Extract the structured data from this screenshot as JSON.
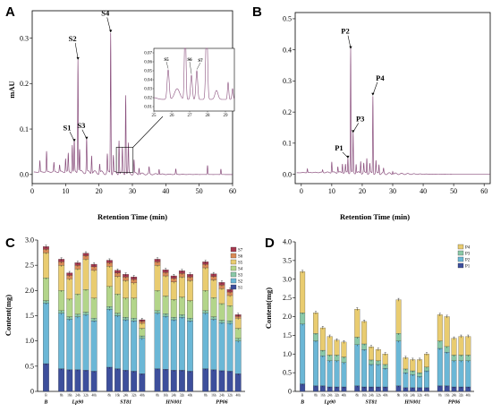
{
  "chart_data": [
    {
      "panel": "A",
      "type": "line",
      "xlabel": "Retention Time (min)",
      "ylabel": "mAU",
      "xlim": [
        0,
        60
      ],
      "ylim": [
        -0.02,
        0.36
      ],
      "xticks": [
        "0",
        "10",
        "20",
        "30",
        "40",
        "50",
        "60"
      ],
      "yticks": [
        "0.0",
        "0.1",
        "0.2",
        "0.3"
      ],
      "baseline_peaks": [
        [
          2.3,
          0.025
        ],
        [
          4.3,
          0.045
        ],
        [
          6.5,
          0.02
        ],
        [
          8.2,
          0.015
        ],
        [
          10.0,
          0.03
        ],
        [
          10.8,
          0.04
        ],
        [
          12.0,
          0.06
        ],
        [
          12.6,
          0.07
        ],
        [
          13.7,
          0.25
        ],
        [
          14.2,
          0.05
        ],
        [
          16.3,
          0.075
        ],
        [
          17.8,
          0.04
        ],
        [
          20.2,
          0.02
        ],
        [
          22.5,
          0.04
        ],
        [
          23.5,
          0.31
        ],
        [
          24.3,
          0.04
        ],
        [
          26.0,
          0.075
        ],
        [
          27.0,
          0.055
        ],
        [
          28.0,
          0.175
        ],
        [
          28.8,
          0.065
        ],
        [
          30.5,
          0.03
        ],
        [
          32.0,
          0.015
        ],
        [
          35.0,
          0.015
        ],
        [
          38.0,
          0.012
        ],
        [
          43.0,
          0.012
        ],
        [
          52.5,
          0.02
        ],
        [
          56.5,
          0.012
        ]
      ],
      "peaks": [
        {
          "label": "S1",
          "x": 12.6,
          "y": 0.07
        },
        {
          "label": "S2",
          "x": 13.7,
          "y": 0.25
        },
        {
          "label": "S3",
          "x": 16.3,
          "y": 0.075
        },
        {
          "label": "S4",
          "x": 23.5,
          "y": 0.31
        }
      ],
      "inset": {
        "xticks": [
          "25",
          "26",
          "27",
          "28",
          "29"
        ],
        "yticks": [
          "0.01",
          "0.02",
          "0.03",
          "0.04",
          "0.05",
          "0.06",
          "0.07"
        ],
        "xlim": [
          25,
          29.5
        ],
        "ylim": [
          0.005,
          0.075
        ],
        "peaks": [
          {
            "label": "S5",
            "x": 25.8,
            "y": 0.051
          },
          {
            "label": "S6",
            "x": 27.1,
            "y": 0.045
          },
          {
            "label": "S7",
            "x": 27.4,
            "y": 0.05
          }
        ]
      }
    },
    {
      "panel": "B",
      "type": "line",
      "xlabel": "Retention Time (min)",
      "ylabel": "",
      "xlim": [
        -2,
        62
      ],
      "ylim": [
        -0.03,
        0.52
      ],
      "xticks": [
        "0",
        "10",
        "20",
        "30",
        "40",
        "50",
        "60"
      ],
      "yticks": [
        "0.0",
        "0.1",
        "0.2",
        "0.3",
        "0.4",
        "0.5"
      ],
      "baseline_peaks": [
        [
          2.0,
          0.012
        ],
        [
          7.0,
          0.008
        ],
        [
          10.0,
          0.035
        ],
        [
          12.0,
          0.02
        ],
        [
          13.5,
          0.03
        ],
        [
          14.5,
          0.025
        ],
        [
          15.3,
          0.048
        ],
        [
          16.2,
          0.4
        ],
        [
          17.0,
          0.13
        ],
        [
          18.0,
          0.03
        ],
        [
          19.5,
          0.04
        ],
        [
          20.5,
          0.03
        ],
        [
          21.5,
          0.05
        ],
        [
          22.5,
          0.03
        ],
        [
          23.5,
          0.25
        ],
        [
          24.5,
          0.04
        ],
        [
          25.5,
          0.03
        ],
        [
          27.0,
          0.015
        ],
        [
          30.0,
          0.01
        ]
      ],
      "peaks": [
        {
          "label": "P1",
          "x": 15.3,
          "y": 0.048
        },
        {
          "label": "P2",
          "x": 16.2,
          "y": 0.4
        },
        {
          "label": "P3",
          "x": 17.0,
          "y": 0.13
        },
        {
          "label": "P4",
          "x": 23.5,
          "y": 0.25
        }
      ]
    },
    {
      "panel": "C",
      "type": "bar",
      "stacked": true,
      "ylabel": "Content(mg)",
      "ylim": [
        0,
        3.0
      ],
      "yticks": [
        "0",
        "0.5",
        "1.0",
        "1.5",
        "2.0",
        "2.5",
        "3.0"
      ],
      "groups": [
        "B",
        "Lp90",
        "ST81",
        "HN001",
        "PP06"
      ],
      "categories": [
        "B",
        "8h",
        "16h",
        "24h",
        "32h",
        "40h",
        "8h",
        "16h",
        "24h",
        "32h",
        "40h",
        "8h",
        "16h",
        "24h",
        "32h",
        "40h",
        "8h",
        "16h",
        "24h",
        "32h",
        "40h"
      ],
      "series": [
        {
          "name": "S1",
          "color": "#3d4f9c",
          "values": [
            0.55,
            0.45,
            0.43,
            0.43,
            0.42,
            0.4,
            0.48,
            0.45,
            0.42,
            0.4,
            0.35,
            0.45,
            0.44,
            0.42,
            0.42,
            0.4,
            0.45,
            0.43,
            0.41,
            0.4,
            0.35
          ]
        },
        {
          "name": "S2",
          "color": "#6bb7d6",
          "values": [
            1.2,
            1.1,
            1.0,
            1.05,
            1.1,
            1.0,
            1.15,
            1.05,
            1.0,
            1.0,
            0.7,
            1.1,
            1.05,
            1.0,
            1.05,
            1.0,
            1.1,
            1.0,
            0.95,
            0.95,
            0.65
          ]
        },
        {
          "name": "S3",
          "color": "#8ac9a8",
          "values": [
            0.05,
            0.05,
            0.05,
            0.05,
            0.05,
            0.05,
            0.05,
            0.05,
            0.05,
            0.05,
            0.05,
            0.05,
            0.05,
            0.05,
            0.05,
            0.05,
            0.05,
            0.05,
            0.05,
            0.05,
            0.05
          ]
        },
        {
          "name": "S4",
          "color": "#b3d58a",
          "values": [
            0.45,
            0.4,
            0.35,
            0.4,
            0.45,
            0.4,
            0.4,
            0.38,
            0.38,
            0.4,
            0.15,
            0.4,
            0.35,
            0.35,
            0.35,
            0.35,
            0.4,
            0.38,
            0.33,
            0.3,
            0.2
          ]
        },
        {
          "name": "S5",
          "color": "#e9cc70",
          "values": [
            0.5,
            0.5,
            0.4,
            0.5,
            0.6,
            0.55,
            0.4,
            0.35,
            0.35,
            0.3,
            0.1,
            0.5,
            0.4,
            0.35,
            0.4,
            0.4,
            0.45,
            0.35,
            0.3,
            0.2,
            0.2
          ]
        },
        {
          "name": "S6",
          "color": "#d98a56",
          "values": [
            0.07,
            0.07,
            0.07,
            0.07,
            0.07,
            0.07,
            0.07,
            0.07,
            0.07,
            0.07,
            0.04,
            0.07,
            0.07,
            0.07,
            0.07,
            0.07,
            0.07,
            0.07,
            0.07,
            0.07,
            0.04
          ]
        },
        {
          "name": "S7",
          "color": "#a63a50",
          "values": [
            0.05,
            0.05,
            0.05,
            0.05,
            0.05,
            0.05,
            0.05,
            0.05,
            0.05,
            0.05,
            0.03,
            0.05,
            0.05,
            0.05,
            0.05,
            0.05,
            0.05,
            0.05,
            0.05,
            0.05,
            0.03
          ]
        }
      ]
    },
    {
      "panel": "D",
      "type": "bar",
      "stacked": true,
      "ylabel": "Content(mg)",
      "ylim": [
        0,
        4.0
      ],
      "yticks": [
        "0",
        "0.5",
        "1.0",
        "1.5",
        "2.0",
        "2.5",
        "3.0",
        "3.5",
        "4.0"
      ],
      "groups": [
        "B",
        "Lp90",
        "ST81",
        "HN001",
        "PP06"
      ],
      "categories": [
        "B",
        "8h",
        "16h",
        "24h",
        "32h",
        "40h",
        "8h",
        "16h",
        "24h",
        "32h",
        "40h",
        "8h",
        "16h",
        "24h",
        "32h",
        "40h",
        "8h",
        "16h",
        "24h",
        "32h",
        "40h"
      ],
      "series": [
        {
          "name": "P1",
          "color": "#3d4f9c",
          "values": [
            0.2,
            0.15,
            0.15,
            0.12,
            0.12,
            0.12,
            0.15,
            0.12,
            0.12,
            0.12,
            0.12,
            0.15,
            0.1,
            0.1,
            0.1,
            0.1,
            0.15,
            0.15,
            0.12,
            0.12,
            0.12
          ]
        },
        {
          "name": "P2",
          "color": "#6bb7d6",
          "values": [
            1.6,
            1.2,
            0.8,
            0.7,
            0.7,
            0.65,
            1.1,
            1.0,
            0.6,
            0.6,
            0.5,
            1.2,
            0.4,
            0.35,
            0.3,
            0.45,
            1.0,
            0.9,
            0.7,
            0.7,
            0.7
          ]
        },
        {
          "name": "P3",
          "color": "#8ac9a8",
          "values": [
            0.3,
            0.2,
            0.15,
            0.15,
            0.15,
            0.15,
            0.2,
            0.15,
            0.12,
            0.1,
            0.1,
            0.2,
            0.1,
            0.1,
            0.1,
            0.1,
            0.2,
            0.15,
            0.15,
            0.15,
            0.15
          ]
        },
        {
          "name": "P4",
          "color": "#e9cc70",
          "values": [
            1.1,
            0.55,
            0.6,
            0.5,
            0.4,
            0.4,
            0.75,
            0.6,
            0.35,
            0.3,
            0.28,
            0.9,
            0.3,
            0.3,
            0.35,
            0.35,
            0.7,
            0.8,
            0.45,
            0.5,
            0.5
          ]
        }
      ]
    }
  ]
}
